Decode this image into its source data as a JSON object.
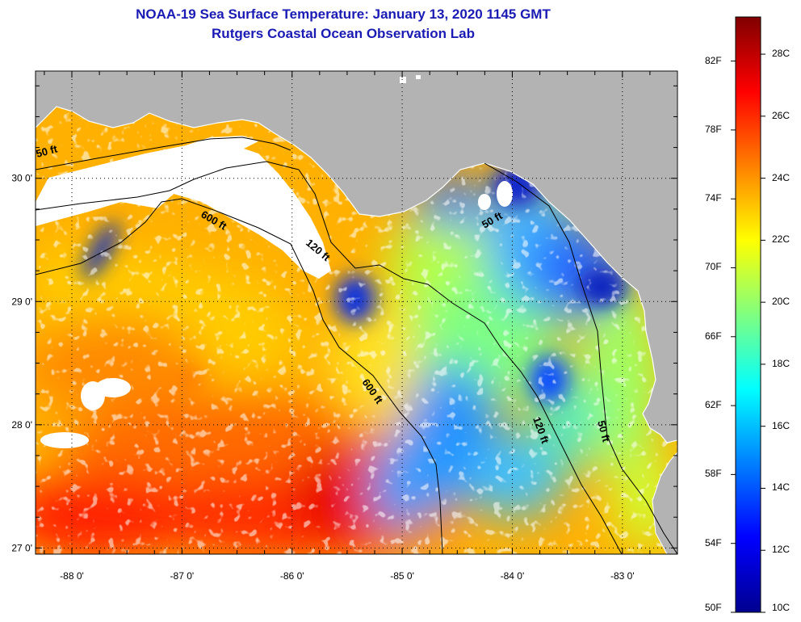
{
  "title": "NOAA-19 Sea Surface Temperature:  January 13, 2020 1145 GMT",
  "subtitle": "Rutgers Coastal Ocean Observation Lab",
  "map": {
    "lon_range": [
      -88.33,
      -82.5
    ],
    "lat_range": [
      26.95,
      30.87
    ],
    "lon_ticks": [
      "-88 0'",
      "-87 0'",
      "-86 0'",
      "-85 0'",
      "-84 0'",
      "-83 0'"
    ],
    "lat_ticks": [
      "30 0'",
      "29 0'",
      "28 0'",
      "27 0'"
    ],
    "depth_labels": [
      "50 ft",
      "600 ft",
      "120 ft",
      "50 ft",
      "600 ft",
      "120 ft",
      "50 ft"
    ],
    "colors": {
      "land": "#b3b3b3",
      "cloud": "#ffffff"
    }
  },
  "colorbar": {
    "fahrenheit_labels": [
      "82F",
      "78F",
      "74F",
      "70F",
      "66F",
      "62F",
      "58F",
      "54F",
      "50F"
    ],
    "celsius_labels": [
      "28C",
      "26C",
      "24C",
      "22C",
      "20C",
      "18C",
      "16C",
      "14C",
      "12C",
      "10C"
    ],
    "range_c": [
      10,
      29.2
    ],
    "colormap": "jet"
  }
}
